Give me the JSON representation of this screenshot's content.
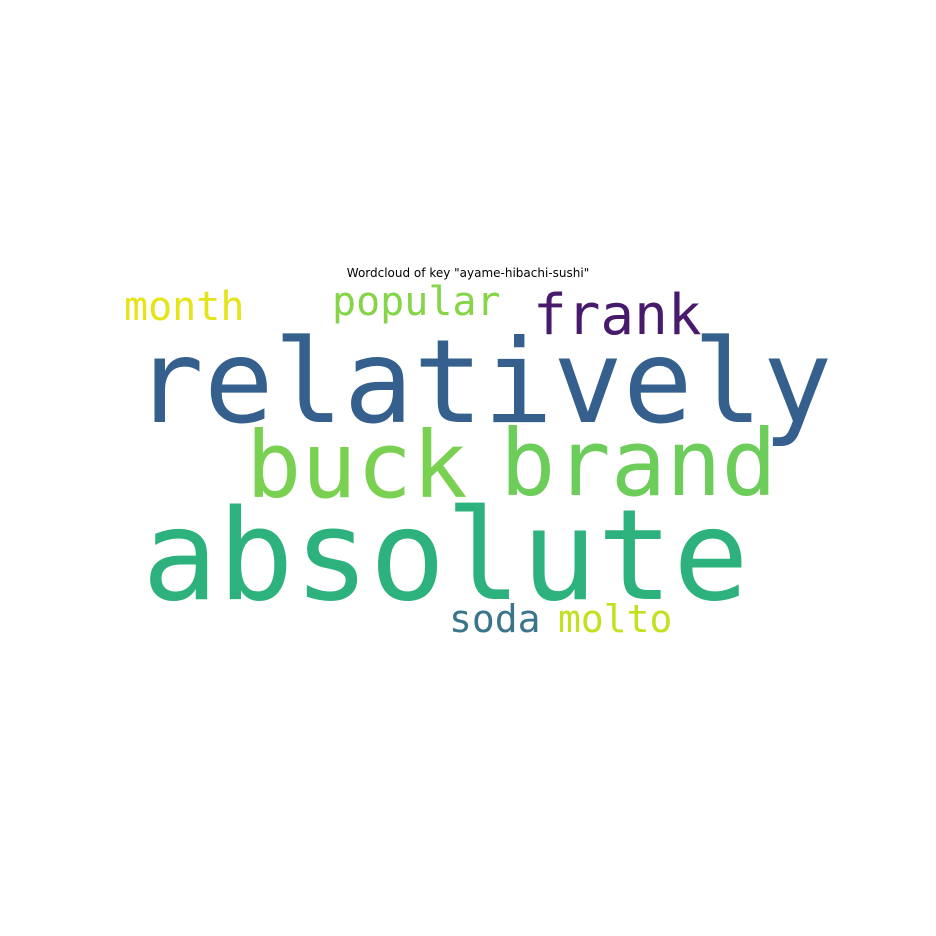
{
  "title": "Wordcloud of key \"ayame-hibachi-sushi\"",
  "words": [
    {
      "text": "relatively",
      "color": "#35608d"
    },
    {
      "text": "absolute",
      "color": "#2db27d"
    },
    {
      "text": "buck",
      "color": "#7ad151"
    },
    {
      "text": "brand",
      "color": "#6ccd5a"
    },
    {
      "text": "frank",
      "color": "#481a6c"
    },
    {
      "text": "popular",
      "color": "#86d549"
    },
    {
      "text": "month",
      "color": "#e5e419"
    },
    {
      "text": "soda",
      "color": "#3b758b"
    },
    {
      "text": "molto",
      "color": "#c5e021"
    }
  ]
}
